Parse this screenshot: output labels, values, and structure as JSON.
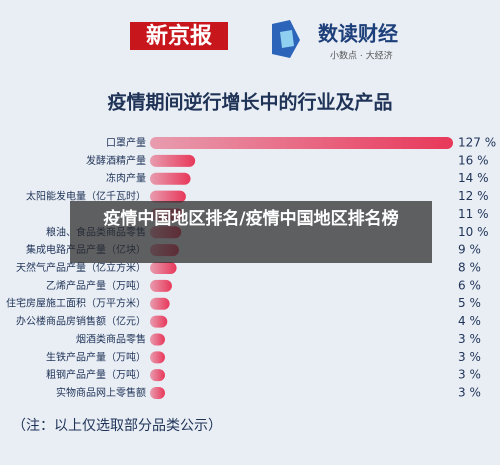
{
  "header": {
    "brand": "新京报",
    "logo_title": "数读财经",
    "logo_subtitle": "小数点 · 大经济"
  },
  "chart_data": {
    "type": "bar",
    "orientation": "horizontal",
    "title": "疫情期间逆行增长中的行业及产品",
    "categories": [
      "口罩产量",
      "发酵酒精产量",
      "冻肉产量",
      "太阳能发电量（亿千瓦时）",
      null,
      "粮油、食品类商品零售",
      "集成电路产品产量（亿块）",
      "天然气产品产量（亿立方米）",
      "乙烯产品产量（万吨）",
      "住宅房屋施工面积（万平方米）",
      "办公楼商品房销售额（亿元）",
      "烟酒类商品零售",
      "生铁产品产量（万吨）",
      "粗钢产品产量（万吨）",
      "实物商品网上零售额"
    ],
    "values": [
      127,
      16,
      14,
      12,
      11,
      10,
      9,
      8,
      6,
      5,
      4,
      3,
      3,
      3,
      3
    ],
    "value_labels": [
      "127 %",
      "16 %",
      "14 %",
      "12 %",
      "11 %",
      "10 %",
      "9 %",
      "8 %",
      "6 %",
      "5 %",
      "4 %",
      "3 %",
      "3 %",
      "3 %",
      "3 %"
    ],
    "color": "#e8385a"
  },
  "footnote": "（注：以上仅选取部分品类公示）",
  "overlay": {
    "title": "疫情中国地区排名/疫情中国地区排名榜"
  }
}
